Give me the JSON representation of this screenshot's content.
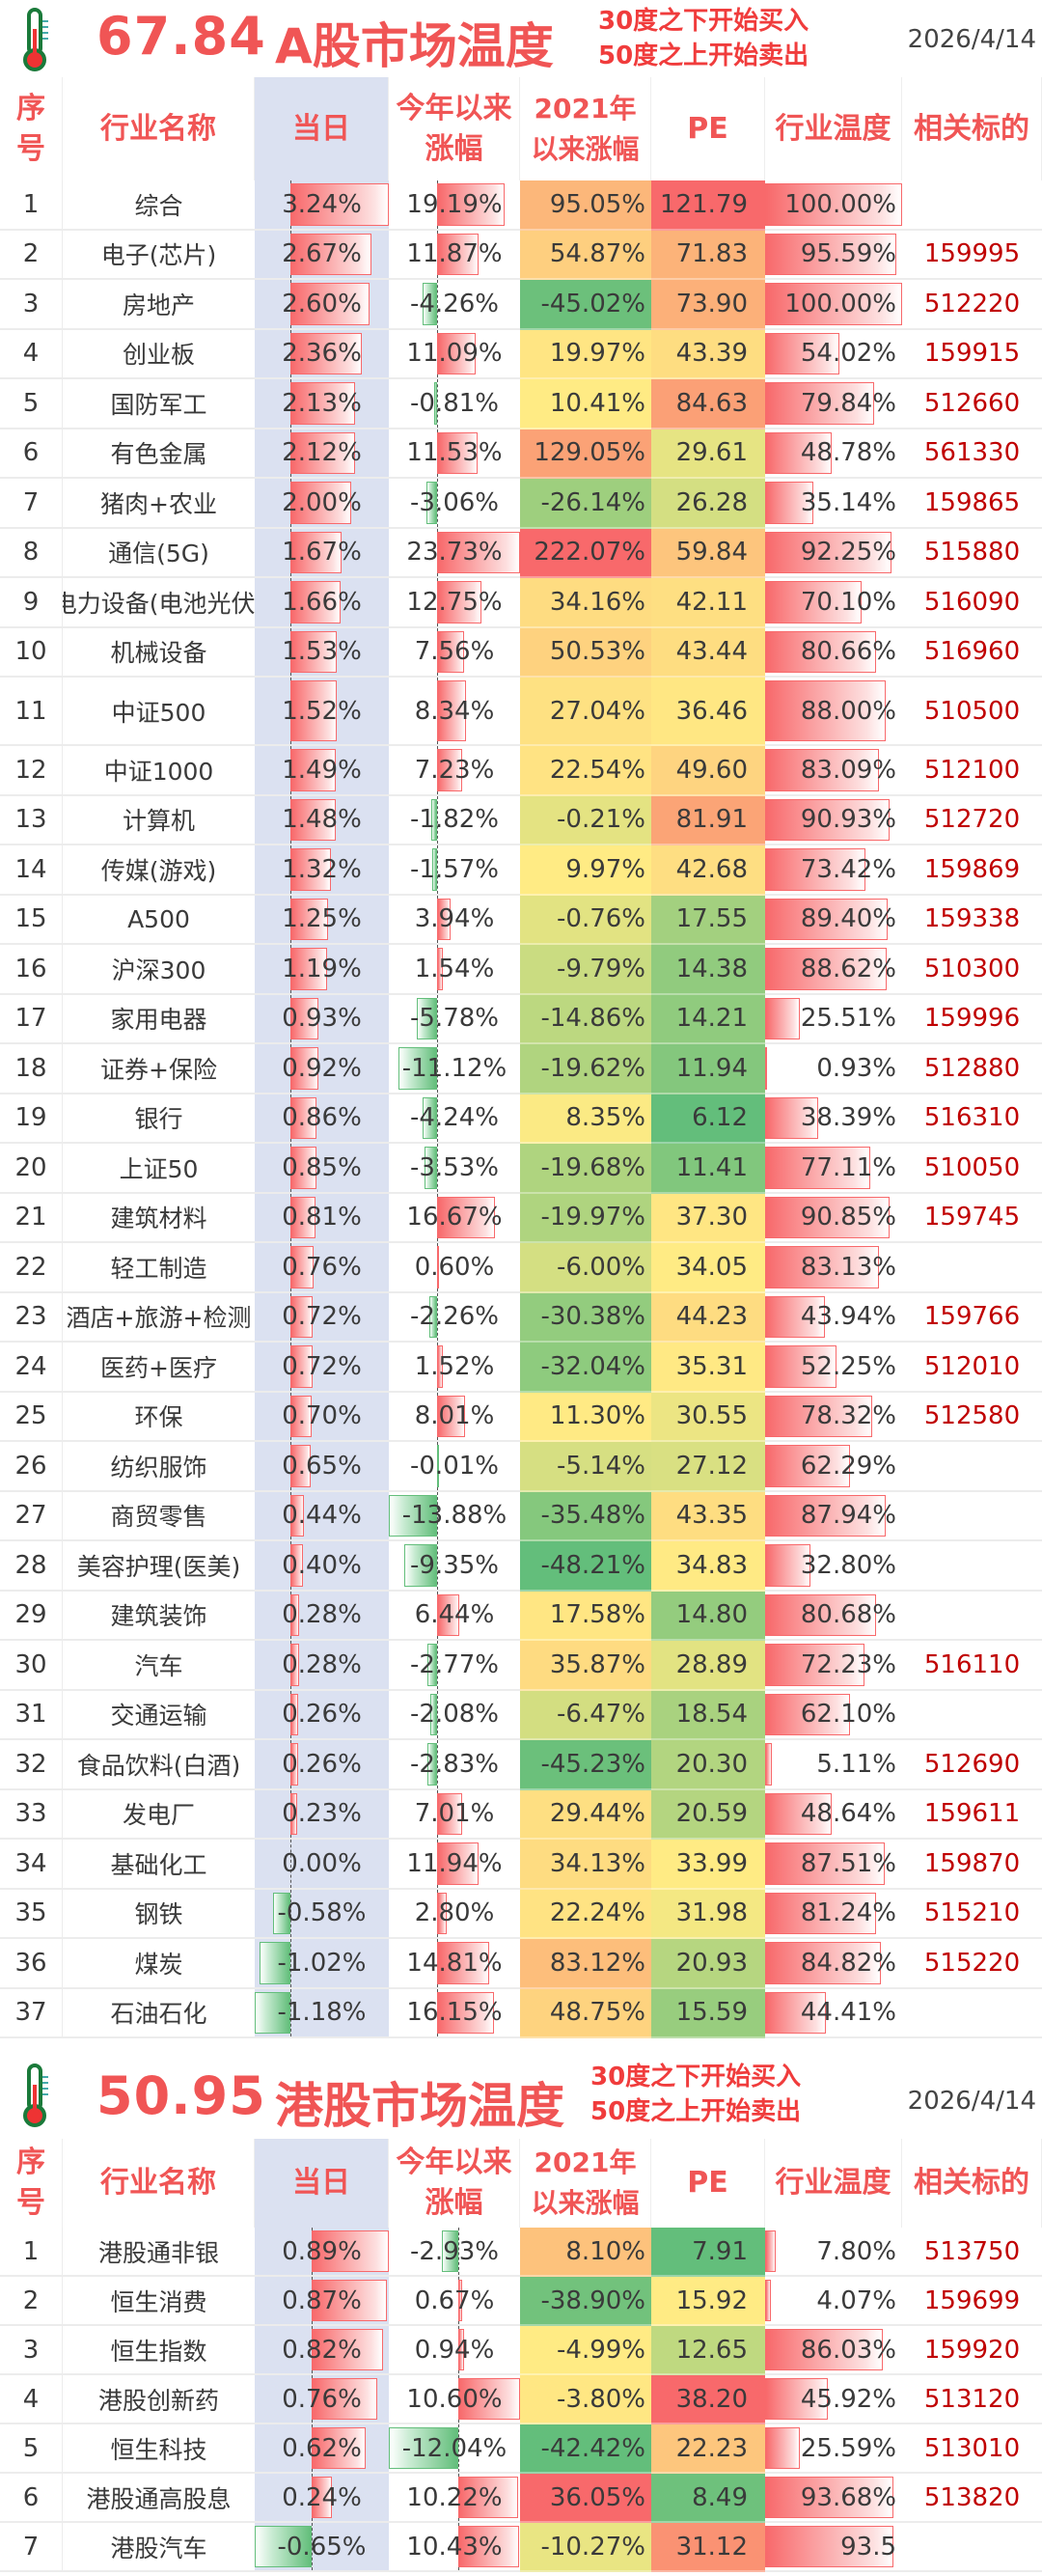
{
  "headers": [
    "序号",
    "行业名称",
    "当日",
    "今年以来涨幅",
    "2021年以来涨幅",
    "PE",
    "行业温度",
    "相关标的"
  ],
  "headers_lines": [
    [
      "序",
      "号"
    ],
    [
      "行业名称"
    ],
    [
      "当日"
    ],
    [
      "今年以来",
      "涨幅"
    ],
    [
      "2021年",
      "以来涨幅"
    ],
    [
      "PE"
    ],
    [
      "行业温度"
    ],
    [
      "相关标的"
    ]
  ],
  "colors": {
    "title_red": "#f05555",
    "code_red": "#c00000",
    "day_bg": "#dbe1f1",
    "bar_red": "#f8696b",
    "bar_green": "#63be7b",
    "scale_low": "#63be7b",
    "scale_mid": "#ffeb84",
    "scale_high": "#f8696b"
  },
  "icons": {
    "thermometer": "thermometer-icon"
  },
  "a_share": {
    "temperature": "67.84",
    "title": "A股市场温度",
    "rule_buy": "30度之下开始买入",
    "rule_sell": "50度之上开始卖出",
    "date": "2026/4/14",
    "rows": [
      [
        "1",
        "综合",
        "3.24%",
        "19.19%",
        "95.05%",
        "121.79",
        "100.00%",
        ""
      ],
      [
        "2",
        "电子(芯片)",
        "2.67%",
        "11.87%",
        "54.87%",
        "71.83",
        "95.59%",
        "159995"
      ],
      [
        "3",
        "房地产",
        "2.60%",
        "-4.26%",
        "-45.02%",
        "73.90",
        "100.00%",
        "512220"
      ],
      [
        "4",
        "创业板",
        "2.36%",
        "11.09%",
        "19.97%",
        "43.39",
        "54.02%",
        "159915"
      ],
      [
        "5",
        "国防军工",
        "2.13%",
        "-0.81%",
        "10.41%",
        "84.63",
        "79.84%",
        "512660"
      ],
      [
        "6",
        "有色金属",
        "2.12%",
        "11.53%",
        "129.05%",
        "29.61",
        "48.78%",
        "561330"
      ],
      [
        "7",
        "猪肉+农业",
        "2.00%",
        "-3.06%",
        "-26.14%",
        "26.28",
        "35.14%",
        "159865"
      ],
      [
        "8",
        "通信(5G)",
        "1.67%",
        "23.73%",
        "222.07%",
        "59.84",
        "92.25%",
        "515880"
      ],
      [
        "9",
        "电力设备(电池光伏)",
        "1.66%",
        "12.75%",
        "34.16%",
        "42.11",
        "70.10%",
        "516090"
      ],
      [
        "10",
        "机械设备",
        "1.53%",
        "7.56%",
        "50.53%",
        "43.44",
        "80.66%",
        "516960"
      ],
      [
        "11",
        "中证500",
        "1.52%",
        "8.34%",
        "27.04%",
        "36.46",
        "88.00%",
        "510500"
      ],
      [
        "12",
        "中证1000",
        "1.49%",
        "7.23%",
        "22.54%",
        "49.60",
        "83.09%",
        "512100"
      ],
      [
        "13",
        "计算机",
        "1.48%",
        "-1.82%",
        "-0.21%",
        "81.91",
        "90.93%",
        "512720"
      ],
      [
        "14",
        "传媒(游戏)",
        "1.32%",
        "-1.57%",
        "9.97%",
        "42.68",
        "73.42%",
        "159869"
      ],
      [
        "15",
        "A500",
        "1.25%",
        "3.94%",
        "-0.76%",
        "17.55",
        "89.40%",
        "159338"
      ],
      [
        "16",
        "沪深300",
        "1.19%",
        "1.54%",
        "-9.79%",
        "14.38",
        "88.62%",
        "510300"
      ],
      [
        "17",
        "家用电器",
        "0.93%",
        "-5.78%",
        "-14.86%",
        "14.21",
        "25.51%",
        "159996"
      ],
      [
        "18",
        "证券+保险",
        "0.92%",
        "-11.12%",
        "-19.62%",
        "11.94",
        "0.93%",
        "512880"
      ],
      [
        "19",
        "银行",
        "0.86%",
        "-4.24%",
        "8.35%",
        "6.12",
        "38.39%",
        "516310"
      ],
      [
        "20",
        "上证50",
        "0.85%",
        "-3.53%",
        "-19.68%",
        "11.41",
        "77.11%",
        "510050"
      ],
      [
        "21",
        "建筑材料",
        "0.81%",
        "16.67%",
        "-19.97%",
        "37.30",
        "90.85%",
        "159745"
      ],
      [
        "22",
        "轻工制造",
        "0.76%",
        "0.60%",
        "-6.00%",
        "34.05",
        "83.13%",
        ""
      ],
      [
        "23",
        "酒店+旅游+检测",
        "0.72%",
        "-2.26%",
        "-30.38%",
        "44.23",
        "43.94%",
        "159766"
      ],
      [
        "24",
        "医药+医疗",
        "0.72%",
        "1.52%",
        "-32.04%",
        "35.31",
        "52.25%",
        "512010"
      ],
      [
        "25",
        "环保",
        "0.70%",
        "8.01%",
        "11.30%",
        "30.55",
        "78.32%",
        "512580"
      ],
      [
        "26",
        "纺织服饰",
        "0.65%",
        "-0.01%",
        "-5.14%",
        "27.12",
        "62.29%",
        ""
      ],
      [
        "27",
        "商贸零售",
        "0.44%",
        "-13.88%",
        "-35.48%",
        "43.35",
        "87.94%",
        ""
      ],
      [
        "28",
        "美容护理(医美)",
        "0.40%",
        "-9.35%",
        "-48.21%",
        "34.83",
        "32.80%",
        ""
      ],
      [
        "29",
        "建筑装饰",
        "0.28%",
        "6.44%",
        "17.58%",
        "14.80",
        "80.68%",
        ""
      ],
      [
        "30",
        "汽车",
        "0.28%",
        "-2.77%",
        "35.87%",
        "28.89",
        "72.23%",
        "516110"
      ],
      [
        "31",
        "交通运输",
        "0.26%",
        "-2.08%",
        "-6.47%",
        "18.54",
        "62.10%",
        ""
      ],
      [
        "32",
        "食品饮料(白酒)",
        "0.26%",
        "-2.83%",
        "-45.23%",
        "20.30",
        "5.11%",
        "512690"
      ],
      [
        "33",
        "发电厂",
        "0.23%",
        "7.01%",
        "29.44%",
        "20.59",
        "48.64%",
        "159611"
      ],
      [
        "34",
        "基础化工",
        "0.00%",
        "11.94%",
        "34.13%",
        "33.99",
        "87.51%",
        "159870"
      ],
      [
        "35",
        "钢铁",
        "-0.58%",
        "2.80%",
        "22.24%",
        "31.98",
        "81.24%",
        "515210"
      ],
      [
        "36",
        "煤炭",
        "-1.02%",
        "14.81%",
        "83.12%",
        "20.93",
        "84.82%",
        "515220"
      ],
      [
        "37",
        "石油石化",
        "-1.18%",
        "16.15%",
        "48.75%",
        "15.59",
        "44.41%",
        ""
      ]
    ]
  },
  "hk_share": {
    "temperature": "50.95",
    "title": "港股市场温度",
    "rule_buy": "30度之下开始买入",
    "rule_sell": "50度之上开始卖出",
    "date": "2026/4/14",
    "rows": [
      [
        "1",
        "港股通非银",
        "0.89%",
        "-2.93%",
        "8.10%",
        "7.91",
        "7.80%",
        "513750"
      ],
      [
        "2",
        "恒生消费",
        "0.87%",
        "0.67%",
        "-38.90%",
        "15.92",
        "4.07%",
        "159699"
      ],
      [
        "3",
        "恒生指数",
        "0.82%",
        "0.94%",
        "-4.99%",
        "12.65",
        "86.03%",
        "159920"
      ],
      [
        "4",
        "港股创新药",
        "0.76%",
        "10.60%",
        "-3.80%",
        "38.20",
        "45.92%",
        "513120"
      ],
      [
        "5",
        "恒生科技",
        "0.62%",
        "-12.04%",
        "-42.42%",
        "22.23",
        "25.59%",
        "513010"
      ],
      [
        "6",
        "港股通高股息",
        "0.24%",
        "10.22%",
        "36.05%",
        "8.49",
        "93.68%",
        "513820"
      ],
      [
        "7",
        "港股汽车",
        "-0.65%",
        "10.43%",
        "-10.27%",
        "31.12",
        "93.5",
        ""
      ]
    ]
  }
}
